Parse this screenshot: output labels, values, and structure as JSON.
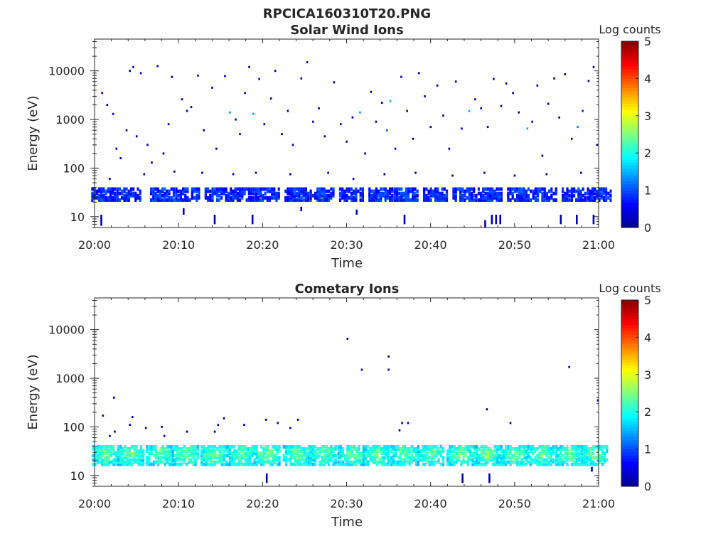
{
  "figure": {
    "title": "RPCICA160310T20.PNG",
    "colormap": [
      "#00008f",
      "#0000ff",
      "#0080ff",
      "#00ffff",
      "#80ff80",
      "#ffff00",
      "#ff8000",
      "#ff0000",
      "#800000"
    ]
  },
  "chart_data": [
    {
      "type": "heatmap",
      "title": "Solar Wind Ions",
      "xlabel": "Time",
      "ylabel": "Energy (eV)",
      "x_ticks": [
        "20:00",
        "20:10",
        "20:20",
        "20:30",
        "20:40",
        "20:50",
        "21:00"
      ],
      "x_range_minutes": [
        0,
        60
      ],
      "y_scale": "log",
      "y_range": [
        6,
        45000
      ],
      "y_ticks": [
        {
          "value": 10,
          "label": "10"
        },
        {
          "value": 100,
          "label": "100"
        },
        {
          "value": 1000,
          "label": "1000"
        },
        {
          "value": 10000,
          "label": "10000"
        }
      ],
      "colorbar": {
        "label": "Log counts",
        "range": [
          0,
          5
        ],
        "ticks": [
          "0",
          "1",
          "2",
          "3",
          "4",
          "5"
        ]
      },
      "bands": {
        "times": [
          1.0,
          4.0,
          8.0,
          11.0,
          14.5,
          17.5,
          20.5,
          24.0,
          27.0,
          30.5,
          34.0,
          37.0,
          40.5,
          44.0,
          47.0,
          50.5,
          53.5,
          57.0,
          60.0
        ],
        "energy_range": [
          22,
          38
        ],
        "level": 0.7,
        "spread_minutes": 1.4,
        "peak_energy": 30,
        "peak_level": 0.9
      },
      "points": [
        {
          "t": 0.9,
          "e": 3500,
          "v": 0.2
        },
        {
          "t": 1.5,
          "e": 2000,
          "v": 0.2
        },
        {
          "t": 2.2,
          "e": 1300,
          "v": 0.2
        },
        {
          "t": 2.6,
          "e": 250,
          "v": 0.2
        },
        {
          "t": 3.1,
          "e": 160,
          "v": 0.2
        },
        {
          "t": 3.8,
          "e": 600,
          "v": 0.2
        },
        {
          "t": 4.2,
          "e": 10000,
          "v": 0.2
        },
        {
          "t": 4.6,
          "e": 12000,
          "v": 0.2
        },
        {
          "t": 5.0,
          "e": 450,
          "v": 0.2
        },
        {
          "t": 5.5,
          "e": 9000,
          "v": 0.2
        },
        {
          "t": 6.3,
          "e": 300,
          "v": 0.2
        },
        {
          "t": 6.8,
          "e": 130,
          "v": 0.2
        },
        {
          "t": 7.5,
          "e": 12500,
          "v": 0.2
        },
        {
          "t": 8.2,
          "e": 200,
          "v": 0.2
        },
        {
          "t": 8.8,
          "e": 800,
          "v": 0.2
        },
        {
          "t": 9.2,
          "e": 7500,
          "v": 0.2
        },
        {
          "t": 10.4,
          "e": 2600,
          "v": 0.5
        },
        {
          "t": 11.0,
          "e": 1500,
          "v": 0.3
        },
        {
          "t": 11.5,
          "e": 1800,
          "v": 0.3
        },
        {
          "t": 12.3,
          "e": 8000,
          "v": 0.2
        },
        {
          "t": 13.0,
          "e": 600,
          "v": 0.2
        },
        {
          "t": 14.0,
          "e": 4500,
          "v": 0.2
        },
        {
          "t": 14.5,
          "e": 250,
          "v": 0.2
        },
        {
          "t": 15.5,
          "e": 7800,
          "v": 0.2
        },
        {
          "t": 16.1,
          "e": 1400,
          "v": 1.3
        },
        {
          "t": 16.8,
          "e": 1000,
          "v": 0.2
        },
        {
          "t": 17.3,
          "e": 500,
          "v": 0.2
        },
        {
          "t": 17.9,
          "e": 3500,
          "v": 0.2
        },
        {
          "t": 18.4,
          "e": 12000,
          "v": 0.2
        },
        {
          "t": 18.9,
          "e": 1300,
          "v": 1.4
        },
        {
          "t": 19.6,
          "e": 6800,
          "v": 0.2
        },
        {
          "t": 20.2,
          "e": 800,
          "v": 0.2
        },
        {
          "t": 21.0,
          "e": 2700,
          "v": 0.2
        },
        {
          "t": 21.5,
          "e": 10000,
          "v": 0.2
        },
        {
          "t": 22.3,
          "e": 500,
          "v": 0.2
        },
        {
          "t": 23.0,
          "e": 1500,
          "v": 0.2
        },
        {
          "t": 23.6,
          "e": 300,
          "v": 0.2
        },
        {
          "t": 24.6,
          "e": 7000,
          "v": 0.2
        },
        {
          "t": 25.3,
          "e": 15000,
          "v": 0.3
        },
        {
          "t": 26.0,
          "e": 900,
          "v": 0.2
        },
        {
          "t": 26.7,
          "e": 1700,
          "v": 0.2
        },
        {
          "t": 27.4,
          "e": 450,
          "v": 0.2
        },
        {
          "t": 28.5,
          "e": 5800,
          "v": 0.2
        },
        {
          "t": 29.3,
          "e": 800,
          "v": 0.2
        },
        {
          "t": 30.0,
          "e": 350,
          "v": 0.2
        },
        {
          "t": 30.7,
          "e": 1100,
          "v": 0.2
        },
        {
          "t": 31.6,
          "e": 1400,
          "v": 1.4
        },
        {
          "t": 32.2,
          "e": 200,
          "v": 0.2
        },
        {
          "t": 32.9,
          "e": 3700,
          "v": 0.2
        },
        {
          "t": 33.5,
          "e": 900,
          "v": 0.2
        },
        {
          "t": 34.2,
          "e": 2200,
          "v": 0.2
        },
        {
          "t": 34.8,
          "e": 600,
          "v": 1.1
        },
        {
          "t": 35.2,
          "e": 2400,
          "v": 1.6
        },
        {
          "t": 35.8,
          "e": 250,
          "v": 0.2
        },
        {
          "t": 36.5,
          "e": 7500,
          "v": 0.2
        },
        {
          "t": 37.2,
          "e": 1500,
          "v": 0.2
        },
        {
          "t": 37.9,
          "e": 400,
          "v": 0.2
        },
        {
          "t": 38.6,
          "e": 9000,
          "v": 0.2
        },
        {
          "t": 39.3,
          "e": 3000,
          "v": 0.2
        },
        {
          "t": 40.0,
          "e": 700,
          "v": 0.2
        },
        {
          "t": 40.8,
          "e": 5000,
          "v": 0.2
        },
        {
          "t": 41.5,
          "e": 1200,
          "v": 0.2
        },
        {
          "t": 42.2,
          "e": 250,
          "v": 0.2
        },
        {
          "t": 43.0,
          "e": 6000,
          "v": 0.2
        },
        {
          "t": 43.7,
          "e": 650,
          "v": 0.5
        },
        {
          "t": 44.6,
          "e": 1500,
          "v": 1.5
        },
        {
          "t": 45.3,
          "e": 2600,
          "v": 0.2
        },
        {
          "t": 46.0,
          "e": 1700,
          "v": 0.2
        },
        {
          "t": 46.8,
          "e": 700,
          "v": 0.2
        },
        {
          "t": 47.5,
          "e": 6800,
          "v": 0.2
        },
        {
          "t": 48.4,
          "e": 1900,
          "v": 0.2
        },
        {
          "t": 49.0,
          "e": 5500,
          "v": 0.2
        },
        {
          "t": 49.8,
          "e": 3500,
          "v": 0.2
        },
        {
          "t": 50.5,
          "e": 1400,
          "v": 0.2
        },
        {
          "t": 51.5,
          "e": 650,
          "v": 1.5
        },
        {
          "t": 52.1,
          "e": 900,
          "v": 0.2
        },
        {
          "t": 52.7,
          "e": 5000,
          "v": 0.2
        },
        {
          "t": 53.3,
          "e": 180,
          "v": 0.2
        },
        {
          "t": 54.0,
          "e": 2100,
          "v": 0.2
        },
        {
          "t": 54.7,
          "e": 7000,
          "v": 0.2
        },
        {
          "t": 55.3,
          "e": 1100,
          "v": 0.2
        },
        {
          "t": 56.0,
          "e": 8500,
          "v": 0.2
        },
        {
          "t": 56.8,
          "e": 400,
          "v": 0.2
        },
        {
          "t": 57.5,
          "e": 700,
          "v": 1.3
        },
        {
          "t": 58.1,
          "e": 1500,
          "v": 0.8
        },
        {
          "t": 58.8,
          "e": 6200,
          "v": 0.2
        },
        {
          "t": 59.4,
          "e": 12000,
          "v": 0.2
        },
        {
          "t": 59.8,
          "e": 300,
          "v": 0.2
        },
        {
          "t": 1.8,
          "e": 60,
          "v": 0.2
        },
        {
          "t": 5.9,
          "e": 75,
          "v": 0.2
        },
        {
          "t": 9.5,
          "e": 85,
          "v": 0.2
        },
        {
          "t": 12.8,
          "e": 80,
          "v": 0.2
        },
        {
          "t": 16.5,
          "e": 75,
          "v": 0.2
        },
        {
          "t": 19.2,
          "e": 80,
          "v": 0.2
        },
        {
          "t": 23.3,
          "e": 75,
          "v": 0.2
        },
        {
          "t": 27.8,
          "e": 80,
          "v": 0.2
        },
        {
          "t": 30.8,
          "e": 60,
          "v": 0.2
        },
        {
          "t": 34.5,
          "e": 75,
          "v": 0.2
        },
        {
          "t": 38.2,
          "e": 80,
          "v": 0.2
        },
        {
          "t": 42.6,
          "e": 70,
          "v": 0.2
        },
        {
          "t": 46.4,
          "e": 80,
          "v": 0.2
        },
        {
          "t": 50.0,
          "e": 70,
          "v": 0.2
        },
        {
          "t": 53.8,
          "e": 75,
          "v": 0.2
        },
        {
          "t": 57.9,
          "e": 80,
          "v": 0.2
        }
      ],
      "streaks": [
        {
          "t": 0.8,
          "e_range": [
            6.5,
            11
          ],
          "v": 0.2
        },
        {
          "t": 10.6,
          "e_range": [
            11,
            15
          ],
          "v": 0.2
        },
        {
          "t": 14.3,
          "e_range": [
            7,
            11
          ],
          "v": 0.2
        },
        {
          "t": 18.8,
          "e_range": [
            7,
            11
          ],
          "v": 0.2
        },
        {
          "t": 24.6,
          "e_range": [
            13,
            16
          ],
          "v": 0.2
        },
        {
          "t": 31.2,
          "e_range": [
            11,
            14
          ],
          "v": 0.2
        },
        {
          "t": 36.9,
          "e_range": [
            7,
            11
          ],
          "v": 0.2
        },
        {
          "t": 46.5,
          "e_range": [
            6,
            8.5
          ],
          "v": 0.2
        },
        {
          "t": 47.3,
          "e_range": [
            7,
            11
          ],
          "v": 0.2
        },
        {
          "t": 47.8,
          "e_range": [
            7,
            11
          ],
          "v": 0.2
        },
        {
          "t": 48.3,
          "e_range": [
            7,
            11
          ],
          "v": 0.2
        },
        {
          "t": 55.5,
          "e_range": [
            7,
            11
          ],
          "v": 0.2
        },
        {
          "t": 57.4,
          "e_range": [
            7,
            11
          ],
          "v": 0.2
        },
        {
          "t": 59.4,
          "e_range": [
            7,
            11
          ],
          "v": 0.2
        }
      ]
    },
    {
      "type": "heatmap",
      "title": "Cometary Ions",
      "xlabel": "Time",
      "ylabel": "Energy (eV)",
      "x_ticks": [
        "20:00",
        "20:10",
        "20:20",
        "20:30",
        "20:40",
        "20:50",
        "21:00"
      ],
      "x_range_minutes": [
        0,
        60
      ],
      "y_scale": "log",
      "y_range": [
        6,
        45000
      ],
      "y_ticks": [
        {
          "value": 10,
          "label": "10"
        },
        {
          "value": 100,
          "label": "100"
        },
        {
          "value": 1000,
          "label": "1000"
        },
        {
          "value": 10000,
          "label": "10000"
        }
      ],
      "colorbar": {
        "label": "Log counts",
        "range": [
          0,
          5
        ],
        "ticks": [
          "0",
          "1",
          "2",
          "3",
          "4",
          "5"
        ]
      },
      "bands": {
        "times": [
          1.3,
          4.3,
          7.7,
          10.8,
          14.2,
          17.3,
          20.5,
          24.0,
          27.2,
          30.5,
          33.5,
          36.8,
          40.0,
          43.5,
          46.7,
          49.9,
          53.1,
          56.4,
          59.5
        ],
        "energy_range": [
          17,
          40
        ],
        "level": 1.7,
        "spread_minutes": 1.6,
        "peak_energy": 28,
        "peak_level": 2.5
      },
      "points": [
        {
          "t": 1.0,
          "e": 170,
          "v": 0.2
        },
        {
          "t": 2.3,
          "e": 400,
          "v": 0.2
        },
        {
          "t": 1.8,
          "e": 65,
          "v": 0.2
        },
        {
          "t": 2.4,
          "e": 80,
          "v": 0.2
        },
        {
          "t": 4.2,
          "e": 110,
          "v": 0.2
        },
        {
          "t": 4.5,
          "e": 160,
          "v": 0.2
        },
        {
          "t": 6.1,
          "e": 95,
          "v": 0.2
        },
        {
          "t": 8.0,
          "e": 100,
          "v": 0.2
        },
        {
          "t": 8.3,
          "e": 65,
          "v": 0.2
        },
        {
          "t": 11.0,
          "e": 80,
          "v": 0.2
        },
        {
          "t": 14.3,
          "e": 80,
          "v": 0.2
        },
        {
          "t": 14.7,
          "e": 110,
          "v": 0.2
        },
        {
          "t": 15.4,
          "e": 150,
          "v": 0.2
        },
        {
          "t": 17.8,
          "e": 110,
          "v": 0.2
        },
        {
          "t": 20.4,
          "e": 140,
          "v": 0.2
        },
        {
          "t": 21.8,
          "e": 120,
          "v": 0.2
        },
        {
          "t": 23.3,
          "e": 95,
          "v": 0.2
        },
        {
          "t": 24.2,
          "e": 140,
          "v": 0.2
        },
        {
          "t": 30.1,
          "e": 6500,
          "v": 0.2
        },
        {
          "t": 31.8,
          "e": 1500,
          "v": 0.2
        },
        {
          "t": 35.0,
          "e": 2800,
          "v": 0.2
        },
        {
          "t": 35.0,
          "e": 1500,
          "v": 0.2
        },
        {
          "t": 36.3,
          "e": 85,
          "v": 0.2
        },
        {
          "t": 36.6,
          "e": 120,
          "v": 0.2
        },
        {
          "t": 37.3,
          "e": 120,
          "v": 0.2
        },
        {
          "t": 46.7,
          "e": 230,
          "v": 0.2
        },
        {
          "t": 49.5,
          "e": 120,
          "v": 0.2
        },
        {
          "t": 56.5,
          "e": 1700,
          "v": 0.2
        },
        {
          "t": 59.9,
          "e": 350,
          "v": 0.2
        }
      ],
      "streaks": [
        {
          "t": 20.5,
          "e_range": [
            7,
            11
          ],
          "v": 0.2
        },
        {
          "t": 43.8,
          "e_range": [
            7,
            11
          ],
          "v": 0.2
        },
        {
          "t": 47.0,
          "e_range": [
            7,
            11
          ],
          "v": 0.2
        },
        {
          "t": 59.2,
          "e_range": [
            12,
            15
          ],
          "v": 0.2
        }
      ]
    }
  ]
}
